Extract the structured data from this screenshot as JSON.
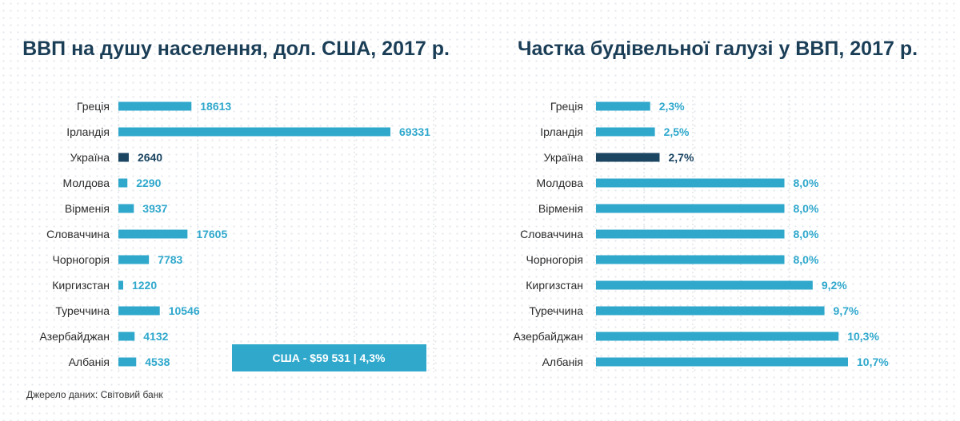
{
  "colors": {
    "bar": "#2fa8cc",
    "highlight": "#1b4561",
    "title": "#1b3e57",
    "grid": "#d4d9de"
  },
  "source": "Джерело даних: Світовий банк",
  "note": "США - $59 531 | 4,3%",
  "chart_data": [
    {
      "type": "bar",
      "orientation": "horizontal",
      "title": "ВВП на душу населення, дол. США, 2017 р.",
      "categories": [
        "Греція",
        "Ірландія",
        "Україна",
        "Молдова",
        "Вірменія",
        "Словаччина",
        "Чорногорія",
        "Киргизстан",
        "Туреччина",
        "Азербайджан",
        "Албанія"
      ],
      "values": [
        18613,
        69331,
        2640,
        2290,
        3937,
        17605,
        7783,
        1220,
        10546,
        4132,
        4538
      ],
      "labels": [
        "18613",
        "69331",
        "2640",
        "2290",
        "3937",
        "17605",
        "7783",
        "1220",
        "10546",
        "4132",
        "4538"
      ],
      "highlight": "Україна",
      "xlim": [
        0,
        80000
      ],
      "grid": true
    },
    {
      "type": "bar",
      "orientation": "horizontal",
      "title": "Частка будівельної галузі у ВВП, 2017 р.",
      "categories": [
        "Греція",
        "Ірландія",
        "Україна",
        "Молдова",
        "Вірменія",
        "Словаччина",
        "Чорногорія",
        "Киргизстан",
        "Туреччина",
        "Азербайджан",
        "Албанія"
      ],
      "values": [
        2.3,
        2.5,
        2.7,
        8.0,
        8.0,
        8.0,
        8.0,
        9.2,
        9.7,
        10.3,
        10.7
      ],
      "labels": [
        "2,3%",
        "2,5%",
        "2,7%",
        "8,0%",
        "8,0%",
        "8,0%",
        "8,0%",
        "9,2%",
        "9,7%",
        "10,3%",
        "10,7%"
      ],
      "unit": "%",
      "highlight": "Україна",
      "xlim": [
        0,
        15
      ],
      "grid": true
    }
  ]
}
